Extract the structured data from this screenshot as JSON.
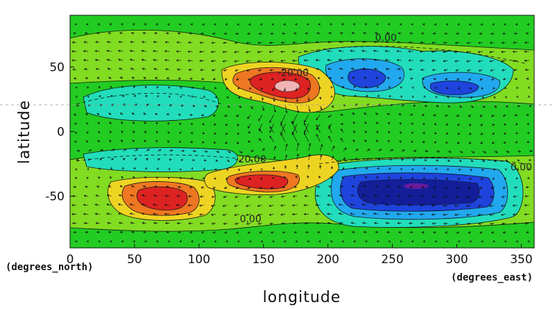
{
  "chart_data": {
    "type": "heatmap",
    "overlay": "vector-arrows",
    "xlabel": "longitude",
    "ylabel": "latitude",
    "x_unit": "(degrees_east)",
    "y_unit": "(degrees_north)",
    "xlim": [
      0,
      360
    ],
    "ylim": [
      -90,
      90
    ],
    "x_ticks": [
      0,
      50,
      100,
      150,
      200,
      250,
      300,
      350
    ],
    "y_ticks": [
      -50,
      0,
      50
    ],
    "contour_labels": [
      {
        "text": "0.00",
        "x": 245,
        "y": 70
      },
      {
        "text": "0.00",
        "x": 555,
        "y": 68
      },
      {
        "text": "0.00",
        "x": 600,
        "y": 27
      },
      {
        "text": "-20.00",
        "x": 140,
        "y": -24
      },
      {
        "text": "-20.00",
        "x": 173,
        "y": 43
      },
      {
        "text": "0.00",
        "x": 140,
        "y": -70
      },
      {
        "text": "0.00",
        "x": 350,
        "y": -30
      }
    ],
    "features": [
      {
        "kind": "maximum",
        "lon": 165,
        "lat": 38,
        "level": "high"
      },
      {
        "kind": "maximum",
        "lon": 75,
        "lat": -50,
        "level": "high"
      },
      {
        "kind": "maximum",
        "lon": 150,
        "lat": -38,
        "level": "high"
      },
      {
        "kind": "minimum",
        "lon": 230,
        "lat": 42,
        "level": "low"
      },
      {
        "kind": "minimum",
        "lon": 300,
        "lat": 35,
        "level": "low"
      },
      {
        "kind": "minimum",
        "lon": 270,
        "lat": -42,
        "level": "very low"
      }
    ],
    "colors": {
      "background": "#22cc22",
      "light_green": "#88dd22",
      "yellow": "#eed422",
      "orange": "#ee7722",
      "red": "#dd2222",
      "pink": "#f2b4b4",
      "cyan": "#22ddbb",
      "light_blue": "#22a8ee",
      "blue": "#1e44dd",
      "dark_blue": "#141e99"
    },
    "grid": false
  }
}
